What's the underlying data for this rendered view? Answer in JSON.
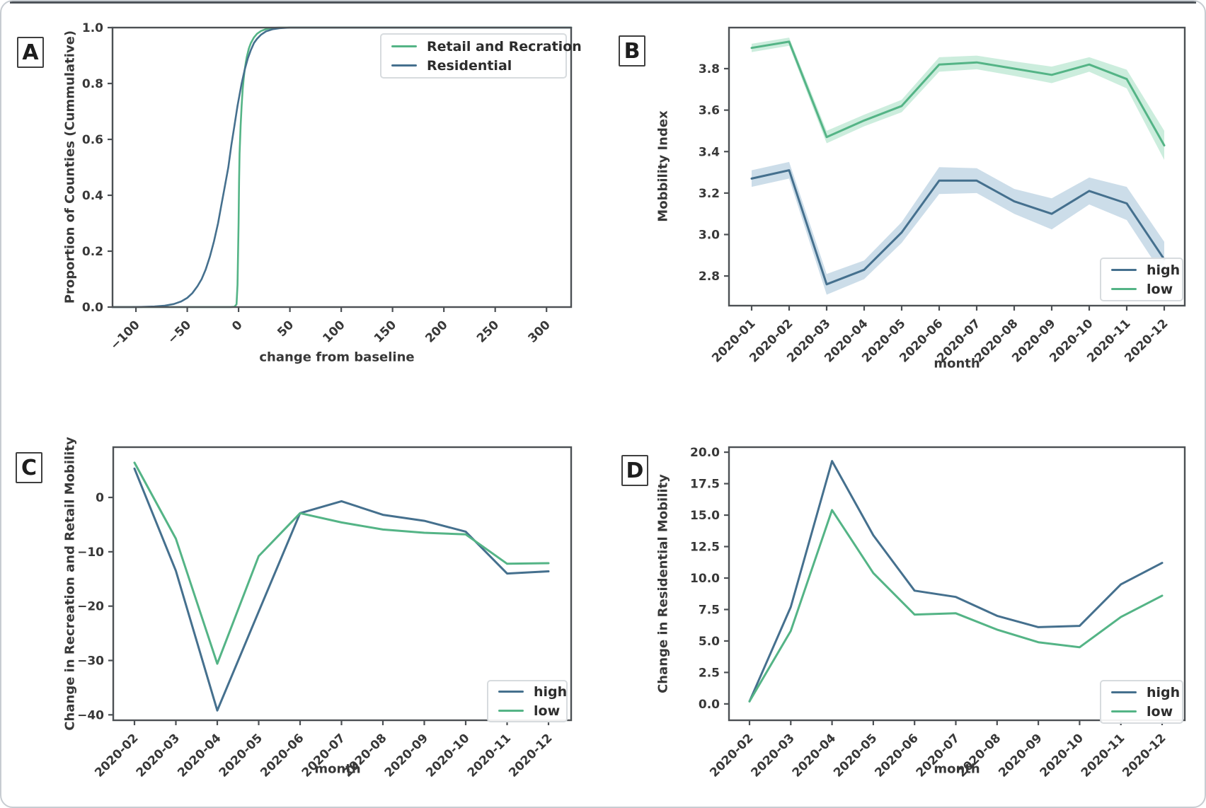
{
  "page": {
    "background": "#ffffff",
    "card_border_color": "#c7ccd1",
    "top_rule_color": "#4e545a"
  },
  "colors": {
    "high": "#45708e",
    "low": "#54b486",
    "band_high": "#8fb4cf",
    "band_low": "#8fd8b3",
    "spine": "#4c5054",
    "text": "#383838"
  },
  "chart_data": [
    {
      "type": "line",
      "panel": "A",
      "xlabel": "change from baseline",
      "ylabel": "Proportion of Counties (Cummulative)",
      "xlim": [
        -122.8,
        324
      ],
      "ylim": [
        0,
        1.0
      ],
      "xticks": [
        {
          "v": -100,
          "label": "−100"
        },
        {
          "v": -50,
          "label": "−50"
        },
        {
          "v": 0,
          "label": "0"
        },
        {
          "v": 50,
          "label": "50"
        },
        {
          "v": 100,
          "label": "100"
        },
        {
          "v": 150,
          "label": "150"
        },
        {
          "v": 200,
          "label": "200"
        },
        {
          "v": 250,
          "label": "250"
        },
        {
          "v": 300,
          "label": "300"
        }
      ],
      "yticks": [
        {
          "v": 0.0,
          "label": "0.0"
        },
        {
          "v": 0.2,
          "label": "0.2"
        },
        {
          "v": 0.4,
          "label": "0.4"
        },
        {
          "v": 0.6,
          "label": "0.6"
        },
        {
          "v": 0.8,
          "label": "0.8"
        },
        {
          "v": 1.0,
          "label": "1.0"
        }
      ],
      "legend": {
        "position": "top-right",
        "items": [
          {
            "label": "Retail and Recration",
            "color_key": "low"
          },
          {
            "label": "Residential",
            "color_key": "high"
          }
        ]
      },
      "series": [
        {
          "name": "Retail and Recration",
          "color_key": "low",
          "points": [
            [
              -122.8,
              0
            ],
            [
              -20,
              0
            ],
            [
              -8,
              0
            ],
            [
              -4,
              0.001
            ],
            [
              -2,
              0.01
            ],
            [
              -1,
              0.08
            ],
            [
              0,
              0.3
            ],
            [
              0.5,
              0.45
            ],
            [
              1,
              0.55
            ],
            [
              2,
              0.65
            ],
            [
              3,
              0.72
            ],
            [
              4,
              0.78
            ],
            [
              5,
              0.82
            ],
            [
              6,
              0.85
            ],
            [
              7,
              0.875
            ],
            [
              8,
              0.895
            ],
            [
              10,
              0.925
            ],
            [
              12,
              0.945
            ],
            [
              15,
              0.965
            ],
            [
              18,
              0.978
            ],
            [
              22,
              0.988
            ],
            [
              27,
              0.995
            ],
            [
              33,
              0.999
            ],
            [
              40,
              1.0
            ],
            [
              324,
              1.0
            ]
          ]
        },
        {
          "name": "Residential",
          "color_key": "high",
          "points": [
            [
              -122.8,
              0
            ],
            [
              -105,
              0
            ],
            [
              -95,
              0.0005
            ],
            [
              -82,
              0.002
            ],
            [
              -72,
              0.005
            ],
            [
              -63,
              0.011
            ],
            [
              -56,
              0.02
            ],
            [
              -50,
              0.033
            ],
            [
              -45,
              0.05
            ],
            [
              -40,
              0.075
            ],
            [
              -36,
              0.1
            ],
            [
              -32,
              0.135
            ],
            [
              -28,
              0.18
            ],
            [
              -24,
              0.235
            ],
            [
              -20,
              0.3
            ],
            [
              -17,
              0.36
            ],
            [
              -14,
              0.42
            ],
            [
              -12,
              0.46
            ],
            [
              -10,
              0.5
            ],
            [
              -7,
              0.58
            ],
            [
              -4,
              0.65
            ],
            [
              -1,
              0.72
            ],
            [
              1,
              0.76
            ],
            [
              3,
              0.8
            ],
            [
              6,
              0.85
            ],
            [
              9,
              0.89
            ],
            [
              12,
              0.92
            ],
            [
              15,
              0.945
            ],
            [
              18,
              0.96
            ],
            [
              22,
              0.975
            ],
            [
              27,
              0.987
            ],
            [
              33,
              0.994
            ],
            [
              40,
              0.998
            ],
            [
              50,
              1.0
            ],
            [
              324,
              1.0
            ]
          ]
        }
      ]
    },
    {
      "type": "line",
      "panel": "B",
      "xlabel": "month",
      "ylabel": "Mobbility Index",
      "categories": [
        "2020-01",
        "2020-02",
        "2020-03",
        "2020-04",
        "2020-05",
        "2020-06",
        "2020-07",
        "2020-08",
        "2020-09",
        "2020-10",
        "2020-11",
        "2020-12"
      ],
      "ylim": [
        2.657,
        3.998
      ],
      "yticks": [
        {
          "v": 2.8,
          "label": "2.8"
        },
        {
          "v": 3.0,
          "label": "3.0"
        },
        {
          "v": 3.2,
          "label": "3.2"
        },
        {
          "v": 3.4,
          "label": "3.4"
        },
        {
          "v": 3.6,
          "label": "3.6"
        },
        {
          "v": 3.8,
          "label": "3.8"
        }
      ],
      "legend": {
        "position": "bottom-right",
        "items": [
          {
            "label": "high",
            "color_key": "high"
          },
          {
            "label": "low",
            "color_key": "low"
          }
        ]
      },
      "series": [
        {
          "name": "high",
          "color_key": "high",
          "values": [
            3.27,
            3.31,
            2.76,
            2.83,
            3.01,
            3.26,
            3.26,
            3.16,
            3.1,
            3.21,
            3.15,
            2.88
          ],
          "band": [
            0.04,
            0.04,
            0.05,
            0.045,
            0.05,
            0.065,
            0.06,
            0.06,
            0.075,
            0.065,
            0.08,
            0.085
          ]
        },
        {
          "name": "low",
          "color_key": "low",
          "values": [
            3.9,
            3.93,
            3.47,
            3.55,
            3.62,
            3.82,
            3.83,
            3.8,
            3.77,
            3.82,
            3.75,
            3.43
          ],
          "band": [
            0.02,
            0.02,
            0.03,
            0.028,
            0.03,
            0.035,
            0.033,
            0.035,
            0.04,
            0.035,
            0.045,
            0.07
          ]
        }
      ]
    },
    {
      "type": "line",
      "panel": "C",
      "xlabel": "month",
      "ylabel": "Change in Recreation and Retail Mobility",
      "categories": [
        "2020-02",
        "2020-03",
        "2020-04",
        "2020-05",
        "2020-06",
        "2020-07",
        "2020-08",
        "2020-09",
        "2020-10",
        "2020-11",
        "2020-12"
      ],
      "ylim": [
        -41.0,
        9.25
      ],
      "yticks": [
        {
          "v": 0,
          "label": "0"
        },
        {
          "v": -10,
          "label": "−10"
        },
        {
          "v": -20,
          "label": "−20"
        },
        {
          "v": -30,
          "label": "−30"
        },
        {
          "v": -40,
          "label": "−40"
        }
      ],
      "legend": {
        "position": "bottom-right",
        "items": [
          {
            "label": "high",
            "color_key": "high"
          },
          {
            "label": "low",
            "color_key": "low"
          }
        ]
      },
      "series": [
        {
          "name": "high",
          "color_key": "high",
          "values": [
            5.3,
            -13.5,
            -39.2,
            -21.0,
            -2.9,
            -0.7,
            -3.2,
            -4.3,
            -6.3,
            -14.0,
            -13.6
          ]
        },
        {
          "name": "low",
          "color_key": "low",
          "values": [
            6.4,
            -7.6,
            -30.6,
            -10.8,
            -2.9,
            -4.6,
            -5.9,
            -6.5,
            -6.8,
            -12.2,
            -12.1
          ]
        }
      ]
    },
    {
      "type": "line",
      "panel": "D",
      "xlabel": "month",
      "ylabel": "Change in Residential Mobility",
      "categories": [
        "2020-02",
        "2020-03",
        "2020-04",
        "2020-05",
        "2020-06",
        "2020-07",
        "2020-08",
        "2020-09",
        "2020-10",
        "2020-11",
        "2020-12"
      ],
      "ylim": [
        -1.3,
        20.4
      ],
      "yticks": [
        {
          "v": 0.0,
          "label": "0.0"
        },
        {
          "v": 2.5,
          "label": "2.5"
        },
        {
          "v": 5.0,
          "label": "5.0"
        },
        {
          "v": 7.5,
          "label": "7.5"
        },
        {
          "v": 10.0,
          "label": "10.0"
        },
        {
          "v": 12.5,
          "label": "12.5"
        },
        {
          "v": 15.0,
          "label": "15.0"
        },
        {
          "v": 17.5,
          "label": "17.5"
        },
        {
          "v": 20.0,
          "label": "20.0"
        }
      ],
      "legend": {
        "position": "bottom-right",
        "items": [
          {
            "label": "high",
            "color_key": "high"
          },
          {
            "label": "low",
            "color_key": "low"
          }
        ]
      },
      "series": [
        {
          "name": "high",
          "color_key": "high",
          "values": [
            0.2,
            7.7,
            19.3,
            13.4,
            9.0,
            8.5,
            7.0,
            6.1,
            6.2,
            9.5,
            11.2
          ]
        },
        {
          "name": "low",
          "color_key": "low",
          "values": [
            0.2,
            5.8,
            15.4,
            10.4,
            7.1,
            7.2,
            5.9,
            4.9,
            4.5,
            6.9,
            8.6
          ]
        }
      ]
    }
  ]
}
